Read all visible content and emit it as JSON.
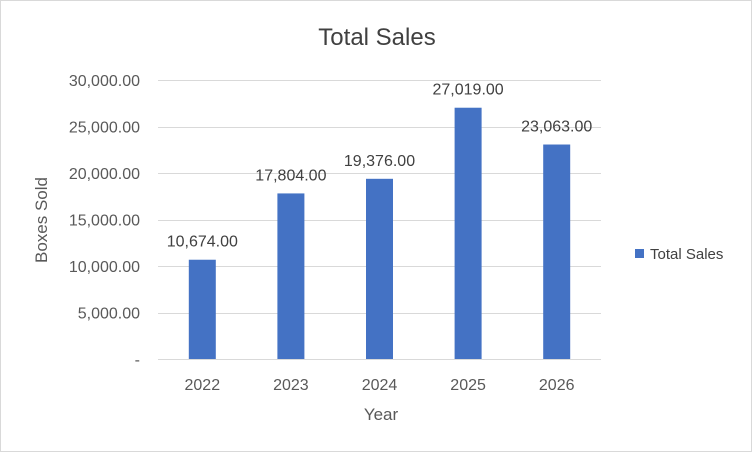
{
  "chart_data": {
    "type": "bar",
    "title": "Total Sales",
    "xlabel": "Year",
    "ylabel": "Boxes Sold",
    "categories": [
      "2022",
      "2023",
      "2024",
      "2025",
      "2026"
    ],
    "series": [
      {
        "name": "Total Sales",
        "values": [
          10674,
          17804,
          19376,
          27019,
          23063
        ],
        "color": "#4472c4"
      }
    ],
    "data_labels": [
      "10,674.00",
      "17,804.00",
      "19,376.00",
      "27,019.00",
      "23,063.00"
    ],
    "ylim": [
      0,
      30000
    ],
    "y_ticks": [
      0,
      5000,
      10000,
      15000,
      20000,
      25000,
      30000
    ],
    "y_tick_labels": [
      "-",
      "5,000.00",
      "10,000.00",
      "15,000.00",
      "20,000.00",
      "25,000.00",
      "30,000.00"
    ],
    "grid": true,
    "legend_position": "right"
  }
}
